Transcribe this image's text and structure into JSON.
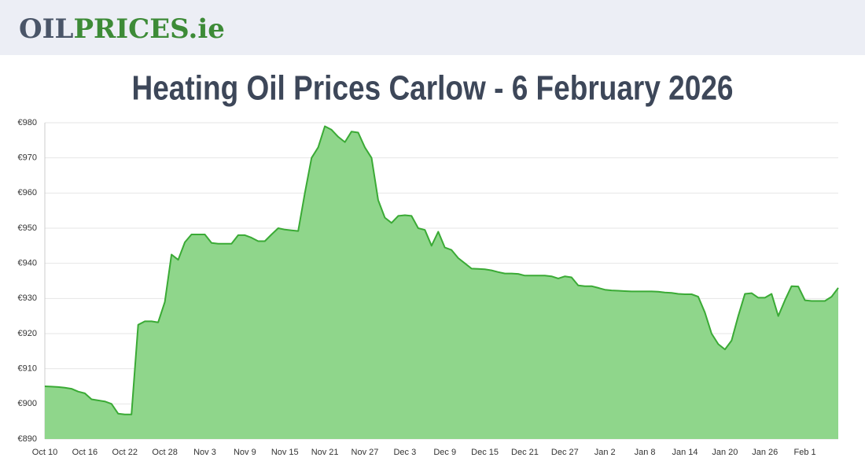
{
  "header": {
    "logo_dark": "OIL",
    "logo_green": "PRICES.ie"
  },
  "chart_data": {
    "type": "area",
    "title": "Heating Oil Prices Carlow - 6 February 2026",
    "categories": [
      "Oct 10",
      null,
      null,
      null,
      null,
      null,
      "Oct 16",
      null,
      null,
      null,
      null,
      null,
      "Oct 22",
      null,
      null,
      null,
      null,
      null,
      "Oct 28",
      null,
      null,
      null,
      null,
      null,
      "Nov 3",
      null,
      null,
      null,
      null,
      null,
      "Nov 9",
      null,
      null,
      null,
      null,
      null,
      "Nov 15",
      null,
      null,
      null,
      null,
      null,
      "Nov 21",
      null,
      null,
      null,
      null,
      null,
      "Nov 27",
      null,
      null,
      null,
      null,
      null,
      "Dec 3",
      null,
      null,
      null,
      null,
      null,
      "Dec 9",
      null,
      null,
      null,
      null,
      null,
      "Dec 15",
      null,
      null,
      null,
      null,
      null,
      "Dec 21",
      null,
      null,
      null,
      null,
      null,
      "Dec 27",
      null,
      null,
      null,
      null,
      null,
      "Jan 2",
      null,
      null,
      null,
      null,
      null,
      "Jan 8",
      null,
      null,
      null,
      null,
      null,
      "Jan 14",
      null,
      null,
      null,
      null,
      null,
      "Jan 20",
      null,
      null,
      null,
      null,
      null,
      "Jan 26",
      null,
      null,
      null,
      null,
      null,
      "Feb 1",
      null,
      null,
      null,
      null,
      null
    ],
    "values": [
      905,
      904.9,
      904.8,
      904.6,
      904.3,
      903.5,
      903,
      901.3,
      901,
      900.7,
      900,
      897.2,
      897,
      897,
      922.5,
      923.5,
      923.5,
      923.2,
      929,
      942.5,
      941,
      946,
      948.2,
      948.2,
      948.2,
      945.8,
      945.6,
      945.6,
      945.6,
      948,
      948,
      947.3,
      946.3,
      946.3,
      948.2,
      950,
      949.6,
      949.4,
      949.2,
      960,
      970,
      973,
      979,
      978,
      976,
      974.5,
      977.5,
      977.2,
      973,
      970,
      958,
      953,
      951.5,
      953.5,
      953.7,
      953.5,
      950,
      949.5,
      945,
      949,
      944.5,
      943.8,
      941.5,
      940,
      938.5,
      938.4,
      938.3,
      938,
      937.5,
      937.1,
      937.1,
      937,
      936.5,
      936.5,
      936.5,
      936.5,
      936.3,
      935.7,
      936.3,
      936,
      933.7,
      933.5,
      933.5,
      933,
      932.5,
      932.3,
      932.2,
      932.1,
      932,
      932,
      932,
      932,
      931.9,
      931.7,
      931.6,
      931.3,
      931.2,
      931.2,
      930.5,
      926,
      920,
      917,
      915.5,
      918,
      925,
      931.3,
      931.5,
      930.2,
      930.2,
      931.3,
      925,
      929.5,
      933.5,
      933.4,
      929.5,
      929.3,
      929.3,
      929.3,
      930.5,
      933
    ],
    "color": "#3aaa35",
    "fill_color": "#8fd68b",
    "ylim": [
      890,
      980
    ],
    "yticks": [
      {
        "value": 890,
        "label": "€890"
      },
      {
        "value": 900,
        "label": "€900"
      },
      {
        "value": 910,
        "label": "€910"
      },
      {
        "value": 920,
        "label": "€920"
      },
      {
        "value": 930,
        "label": "€930"
      },
      {
        "value": 940,
        "label": "€940"
      },
      {
        "value": 950,
        "label": "€950"
      },
      {
        "value": 960,
        "label": "€960"
      },
      {
        "value": 970,
        "label": "€970"
      },
      {
        "value": 980,
        "label": "€980"
      }
    ],
    "grid": true
  }
}
